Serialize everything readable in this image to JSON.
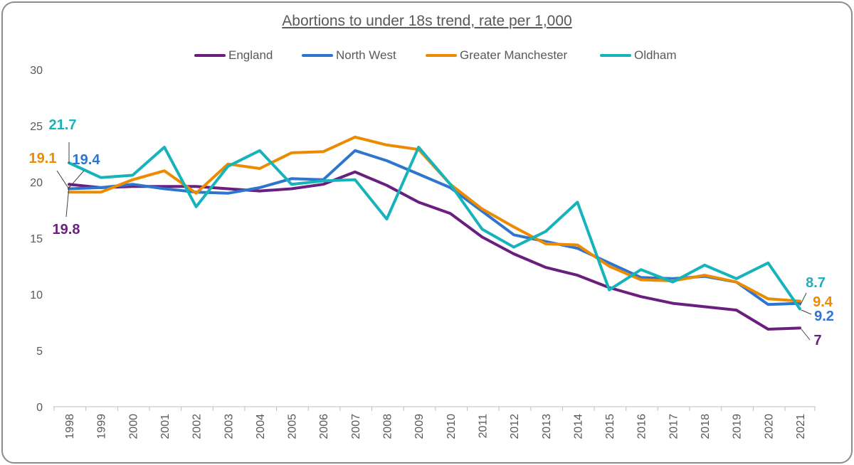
{
  "chart_data": {
    "type": "line",
    "title": "Abortions to under 18s trend, rate per 1,000",
    "xlabel": "",
    "ylabel": "",
    "ylim": [
      0,
      30
    ],
    "yticks": [
      0,
      5,
      10,
      15,
      20,
      25,
      30
    ],
    "grid": false,
    "legend_position": "top",
    "categories": [
      "1998",
      "1999",
      "2000",
      "2001",
      "2002",
      "2003",
      "2004",
      "2005",
      "2006",
      "2007",
      "2008",
      "2009",
      "2010",
      "2011",
      "2012",
      "2013",
      "2014",
      "2015",
      "2016",
      "2017",
      "2018",
      "2019",
      "2020",
      "2021"
    ],
    "series": [
      {
        "name": "England",
        "color": "#6a1f7e",
        "values": [
          19.8,
          19.5,
          19.6,
          19.6,
          19.6,
          19.4,
          19.2,
          19.4,
          19.8,
          20.9,
          19.7,
          18.2,
          17.2,
          15.1,
          13.6,
          12.4,
          11.7,
          10.6,
          9.8,
          9.2,
          8.9,
          8.6,
          6.9,
          7.0
        ]
      },
      {
        "name": "North West",
        "color": "#2e75d0",
        "values": [
          19.4,
          19.5,
          19.8,
          19.4,
          19.1,
          19.0,
          19.5,
          20.3,
          20.2,
          22.8,
          21.9,
          20.7,
          19.5,
          17.4,
          15.3,
          14.7,
          14.1,
          12.8,
          11.5,
          11.4,
          11.6,
          11.1,
          9.1,
          9.2
        ]
      },
      {
        "name": "Greater Manchester",
        "color": "#ed8b00",
        "values": [
          19.1,
          19.1,
          20.2,
          21.0,
          19.0,
          21.6,
          21.2,
          22.6,
          22.7,
          24.0,
          23.3,
          22.9,
          19.8,
          17.6,
          16.0,
          14.5,
          14.4,
          12.5,
          11.3,
          11.2,
          11.7,
          11.1,
          9.6,
          9.4
        ]
      },
      {
        "name": "Oldham",
        "color": "#17b3ba",
        "values": [
          21.7,
          20.4,
          20.6,
          23.1,
          17.8,
          21.4,
          22.8,
          19.8,
          20.1,
          20.2,
          16.7,
          23.1,
          19.8,
          15.8,
          14.2,
          15.6,
          18.2,
          10.4,
          12.2,
          11.1,
          12.6,
          11.4,
          12.8,
          8.7
        ]
      }
    ],
    "data_labels": [
      {
        "series": "Oldham",
        "category": "1998",
        "text": "21.7"
      },
      {
        "series": "Greater Manchester",
        "category": "1998",
        "text": "19.1"
      },
      {
        "series": "North West",
        "category": "1998",
        "text": "19.4"
      },
      {
        "series": "England",
        "category": "1998",
        "text": "19.8"
      },
      {
        "series": "Oldham",
        "category": "2021",
        "text": "8.7"
      },
      {
        "series": "Greater Manchester",
        "category": "2021",
        "text": "9.4"
      },
      {
        "series": "North West",
        "category": "2021",
        "text": "9.2"
      },
      {
        "series": "England",
        "category": "2021",
        "text": "7"
      }
    ]
  }
}
